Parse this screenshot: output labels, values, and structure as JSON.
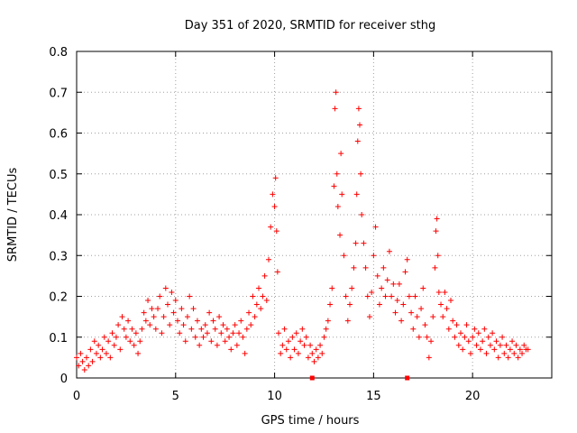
{
  "chart_data": {
    "type": "scatter",
    "title": "Day 351 of 2020, SRMTID for receiver sthg",
    "xlabel": "GPS time / hours",
    "ylabel": "SRMTID / TECUs",
    "xlim": [
      0,
      24
    ],
    "ylim": [
      0,
      0.8
    ],
    "xticks": [
      0,
      5,
      10,
      15,
      20
    ],
    "yticks": [
      0,
      0.1,
      0.2,
      0.3,
      0.4,
      0.5,
      0.6,
      0.7,
      0.8
    ],
    "xtick_labels": [
      "0",
      "5",
      "10",
      "15",
      "20"
    ],
    "ytick_labels": [
      "0",
      "0.1",
      "0.2",
      "0.3",
      "0.4",
      "0.5",
      "0.6",
      "0.7",
      "0.8"
    ],
    "grid": true,
    "marker": "+",
    "color": "#ff0000",
    "series": [
      {
        "name": "SRMTID",
        "points": [
          [
            0.0,
            0.05
          ],
          [
            0.1,
            0.03
          ],
          [
            0.2,
            0.06
          ],
          [
            0.3,
            0.04
          ],
          [
            0.4,
            0.02
          ],
          [
            0.5,
            0.05
          ],
          [
            0.6,
            0.03
          ],
          [
            0.7,
            0.07
          ],
          [
            0.8,
            0.04
          ],
          [
            0.9,
            0.09
          ],
          [
            1.0,
            0.06
          ],
          [
            1.1,
            0.08
          ],
          [
            1.2,
            0.05
          ],
          [
            1.3,
            0.07
          ],
          [
            1.4,
            0.1
          ],
          [
            1.5,
            0.06
          ],
          [
            1.6,
            0.09
          ],
          [
            1.7,
            0.05
          ],
          [
            1.8,
            0.11
          ],
          [
            1.9,
            0.08
          ],
          [
            2.0,
            0.1
          ],
          [
            2.1,
            0.13
          ],
          [
            2.2,
            0.07
          ],
          [
            2.3,
            0.15
          ],
          [
            2.4,
            0.12
          ],
          [
            2.5,
            0.1
          ],
          [
            2.6,
            0.14
          ],
          [
            2.7,
            0.09
          ],
          [
            2.8,
            0.12
          ],
          [
            2.9,
            0.08
          ],
          [
            3.0,
            0.11
          ],
          [
            3.1,
            0.06
          ],
          [
            3.2,
            0.09
          ],
          [
            3.3,
            0.12
          ],
          [
            3.4,
            0.16
          ],
          [
            3.5,
            0.14
          ],
          [
            3.6,
            0.19
          ],
          [
            3.7,
            0.13
          ],
          [
            3.8,
            0.17
          ],
          [
            3.9,
            0.15
          ],
          [
            4.0,
            0.12
          ],
          [
            4.1,
            0.17
          ],
          [
            4.2,
            0.2
          ],
          [
            4.3,
            0.11
          ],
          [
            4.4,
            0.15
          ],
          [
            4.5,
            0.22
          ],
          [
            4.6,
            0.18
          ],
          [
            4.7,
            0.13
          ],
          [
            4.8,
            0.21
          ],
          [
            4.9,
            0.16
          ],
          [
            5.0,
            0.19
          ],
          [
            5.1,
            0.14
          ],
          [
            5.2,
            0.11
          ],
          [
            5.3,
            0.17
          ],
          [
            5.4,
            0.13
          ],
          [
            5.5,
            0.09
          ],
          [
            5.6,
            0.15
          ],
          [
            5.7,
            0.2
          ],
          [
            5.8,
            0.12
          ],
          [
            5.9,
            0.17
          ],
          [
            6.0,
            0.1
          ],
          [
            6.1,
            0.14
          ],
          [
            6.2,
            0.08
          ],
          [
            6.3,
            0.12
          ],
          [
            6.4,
            0.1
          ],
          [
            6.5,
            0.13
          ],
          [
            6.6,
            0.11
          ],
          [
            6.7,
            0.16
          ],
          [
            6.8,
            0.09
          ],
          [
            6.9,
            0.14
          ],
          [
            7.0,
            0.12
          ],
          [
            7.1,
            0.08
          ],
          [
            7.2,
            0.15
          ],
          [
            7.3,
            0.11
          ],
          [
            7.4,
            0.13
          ],
          [
            7.5,
            0.09
          ],
          [
            7.6,
            0.12
          ],
          [
            7.7,
            0.1
          ],
          [
            7.8,
            0.07
          ],
          [
            7.9,
            0.11
          ],
          [
            8.0,
            0.13
          ],
          [
            8.1,
            0.08
          ],
          [
            8.2,
            0.11
          ],
          [
            8.3,
            0.14
          ],
          [
            8.4,
            0.1
          ],
          [
            8.5,
            0.06
          ],
          [
            8.6,
            0.12
          ],
          [
            8.7,
            0.16
          ],
          [
            8.8,
            0.13
          ],
          [
            8.9,
            0.2
          ],
          [
            9.0,
            0.15
          ],
          [
            9.1,
            0.18
          ],
          [
            9.2,
            0.22
          ],
          [
            9.3,
            0.17
          ],
          [
            9.4,
            0.2
          ],
          [
            9.5,
            0.25
          ],
          [
            9.6,
            0.19
          ],
          [
            9.7,
            0.29
          ],
          [
            9.8,
            0.37
          ],
          [
            9.9,
            0.45
          ],
          [
            10.0,
            0.42
          ],
          [
            10.05,
            0.49
          ],
          [
            10.1,
            0.36
          ],
          [
            10.15,
            0.26
          ],
          [
            10.2,
            0.11
          ],
          [
            10.3,
            0.06
          ],
          [
            10.4,
            0.08
          ],
          [
            10.5,
            0.12
          ],
          [
            10.6,
            0.07
          ],
          [
            10.7,
            0.09
          ],
          [
            10.8,
            0.05
          ],
          [
            10.9,
            0.1
          ],
          [
            11.0,
            0.07
          ],
          [
            11.1,
            0.11
          ],
          [
            11.2,
            0.06
          ],
          [
            11.3,
            0.09
          ],
          [
            11.4,
            0.12
          ],
          [
            11.5,
            0.08
          ],
          [
            11.6,
            0.1
          ],
          [
            11.7,
            0.05
          ],
          [
            11.8,
            0.08
          ],
          [
            11.9,
            0.06
          ],
          [
            12.0,
            0.04
          ],
          [
            12.1,
            0.07
          ],
          [
            12.2,
            0.05
          ],
          [
            12.3,
            0.08
          ],
          [
            12.4,
            0.06
          ],
          [
            12.5,
            0.1
          ],
          [
            12.6,
            0.12
          ],
          [
            12.7,
            0.14
          ],
          [
            12.8,
            0.18
          ],
          [
            12.9,
            0.22
          ],
          [
            13.0,
            0.47
          ],
          [
            13.05,
            0.66
          ],
          [
            13.1,
            0.7
          ],
          [
            13.15,
            0.5
          ],
          [
            13.2,
            0.42
          ],
          [
            13.3,
            0.35
          ],
          [
            13.35,
            0.55
          ],
          [
            13.4,
            0.45
          ],
          [
            13.5,
            0.3
          ],
          [
            13.6,
            0.2
          ],
          [
            13.7,
            0.14
          ],
          [
            13.8,
            0.18
          ],
          [
            13.9,
            0.22
          ],
          [
            14.0,
            0.27
          ],
          [
            14.1,
            0.33
          ],
          [
            14.15,
            0.45
          ],
          [
            14.2,
            0.58
          ],
          [
            14.25,
            0.66
          ],
          [
            14.3,
            0.62
          ],
          [
            14.35,
            0.5
          ],
          [
            14.4,
            0.4
          ],
          [
            14.5,
            0.33
          ],
          [
            14.6,
            0.27
          ],
          [
            14.7,
            0.2
          ],
          [
            14.8,
            0.15
          ],
          [
            14.9,
            0.21
          ],
          [
            15.0,
            0.3
          ],
          [
            15.1,
            0.37
          ],
          [
            15.2,
            0.25
          ],
          [
            15.3,
            0.18
          ],
          [
            15.4,
            0.22
          ],
          [
            15.5,
            0.27
          ],
          [
            15.6,
            0.2
          ],
          [
            15.7,
            0.24
          ],
          [
            15.8,
            0.31
          ],
          [
            15.9,
            0.2
          ],
          [
            16.0,
            0.23
          ],
          [
            16.1,
            0.16
          ],
          [
            16.2,
            0.19
          ],
          [
            16.3,
            0.23
          ],
          [
            16.4,
            0.14
          ],
          [
            16.5,
            0.18
          ],
          [
            16.6,
            0.26
          ],
          [
            16.7,
            0.29
          ],
          [
            16.8,
            0.2
          ],
          [
            16.9,
            0.16
          ],
          [
            17.0,
            0.12
          ],
          [
            17.1,
            0.2
          ],
          [
            17.2,
            0.15
          ],
          [
            17.3,
            0.1
          ],
          [
            17.4,
            0.17
          ],
          [
            17.5,
            0.22
          ],
          [
            17.6,
            0.13
          ],
          [
            17.7,
            0.1
          ],
          [
            17.8,
            0.05
          ],
          [
            17.9,
            0.09
          ],
          [
            18.0,
            0.15
          ],
          [
            18.1,
            0.27
          ],
          [
            18.15,
            0.36
          ],
          [
            18.2,
            0.39
          ],
          [
            18.25,
            0.3
          ],
          [
            18.3,
            0.21
          ],
          [
            18.4,
            0.18
          ],
          [
            18.5,
            0.15
          ],
          [
            18.6,
            0.21
          ],
          [
            18.7,
            0.17
          ],
          [
            18.8,
            0.12
          ],
          [
            18.9,
            0.19
          ],
          [
            19.0,
            0.14
          ],
          [
            19.1,
            0.1
          ],
          [
            19.2,
            0.13
          ],
          [
            19.3,
            0.08
          ],
          [
            19.4,
            0.11
          ],
          [
            19.5,
            0.07
          ],
          [
            19.6,
            0.1
          ],
          [
            19.7,
            0.13
          ],
          [
            19.8,
            0.09
          ],
          [
            19.9,
            0.06
          ],
          [
            20.0,
            0.1
          ],
          [
            20.1,
            0.12
          ],
          [
            20.2,
            0.08
          ],
          [
            20.3,
            0.11
          ],
          [
            20.4,
            0.07
          ],
          [
            20.5,
            0.09
          ],
          [
            20.6,
            0.12
          ],
          [
            20.7,
            0.06
          ],
          [
            20.8,
            0.1
          ],
          [
            20.9,
            0.08
          ],
          [
            21.0,
            0.11
          ],
          [
            21.1,
            0.07
          ],
          [
            21.2,
            0.09
          ],
          [
            21.3,
            0.05
          ],
          [
            21.4,
            0.08
          ],
          [
            21.5,
            0.1
          ],
          [
            21.6,
            0.06
          ],
          [
            21.7,
            0.08
          ],
          [
            21.8,
            0.05
          ],
          [
            21.9,
            0.07
          ],
          [
            22.0,
            0.09
          ],
          [
            22.1,
            0.06
          ],
          [
            22.2,
            0.08
          ],
          [
            22.3,
            0.05
          ],
          [
            22.4,
            0.07
          ],
          [
            22.5,
            0.06
          ],
          [
            22.6,
            0.08
          ],
          [
            22.7,
            0.07
          ],
          [
            22.8,
            0.07
          ]
        ]
      },
      {
        "name": "markers",
        "points": [
          [
            11.9,
            0.0
          ],
          [
            16.7,
            0.0
          ]
        ]
      }
    ]
  }
}
